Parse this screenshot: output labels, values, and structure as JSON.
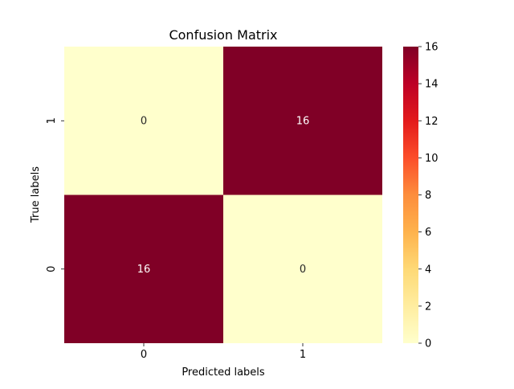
{
  "chart_data": {
    "type": "heatmap",
    "title": "Confusion Matrix",
    "xlabel": "Predicted labels",
    "ylabel": "True labels",
    "x_categories": [
      "0",
      "1"
    ],
    "y_categories": [
      "1",
      "0"
    ],
    "cells": [
      {
        "true": "1",
        "predicted": "0",
        "value": 0
      },
      {
        "true": "1",
        "predicted": "1",
        "value": 16
      },
      {
        "true": "0",
        "predicted": "0",
        "value": 16
      },
      {
        "true": "0",
        "predicted": "1",
        "value": 0
      }
    ],
    "colorbar": {
      "colormap": "YlOrRd",
      "range": [
        0,
        16
      ],
      "ticks": [
        0,
        2,
        4,
        6,
        8,
        10,
        12,
        14,
        16
      ],
      "low_color": "#ffffcc",
      "high_color": "#800026"
    },
    "annotation_colors": {
      "on_light": "#262626",
      "on_dark": "#ffffff"
    },
    "grid": false
  }
}
